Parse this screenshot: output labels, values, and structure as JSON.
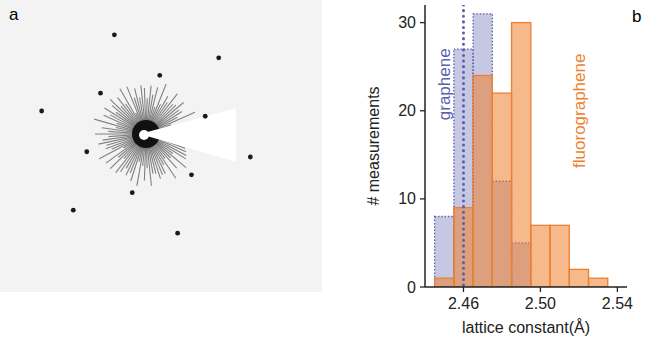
{
  "panel_labels": [
    "a",
    "b"
  ],
  "chart_data": {
    "type": "histogram",
    "x_label": "lattice constant(Å)",
    "y_label": "# measurements",
    "bins": [
      2.445,
      2.455,
      2.465,
      2.475,
      2.485,
      2.495,
      2.505,
      2.515,
      2.525,
      2.535
    ],
    "series": [
      {
        "name": "graphene",
        "color": "#5b5fae",
        "line_style": "dotted",
        "values": [
          8,
          27,
          31,
          12,
          5,
          0,
          0,
          0,
          0
        ]
      },
      {
        "name": "fluorographene",
        "color": "#ee7f2d",
        "line_style": "solid",
        "values": [
          1,
          9,
          24,
          22,
          30,
          7,
          7,
          2,
          1
        ]
      }
    ],
    "xlim": [
      2.44,
      2.545
    ],
    "xticks": [
      2.46,
      {
        "value": 2.5,
        "label": "2.50"
      },
      2.54
    ],
    "ylim": [
      0,
      32
    ],
    "yticks": [
      0,
      10,
      20,
      30
    ],
    "reference_x": 2.46
  }
}
